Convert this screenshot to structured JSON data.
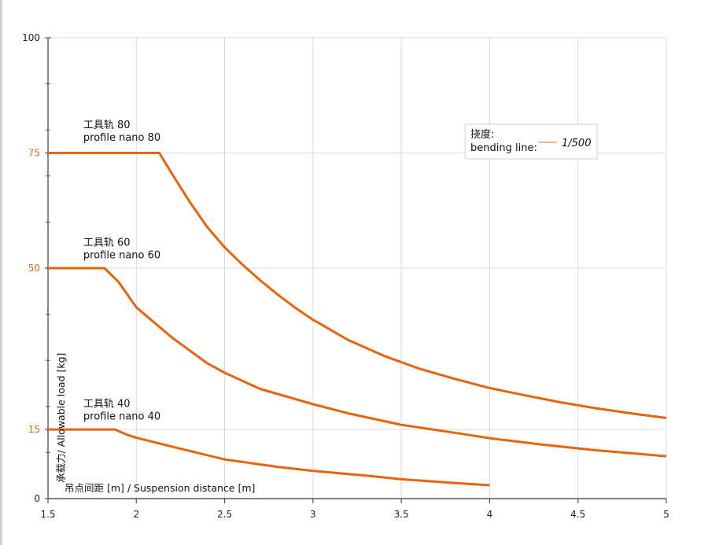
{
  "chart_data": {
    "type": "line",
    "xlabel": "吊点间距 [m] / Suspension distance [m]",
    "ylabel": "承载力/ Allowable load [kg]",
    "xlim": [
      1.5,
      5
    ],
    "ylim": [
      0,
      100
    ],
    "x_ticks": [
      "1.5",
      "2",
      "2.5",
      "3",
      "3.5",
      "4",
      "4.5",
      "5"
    ],
    "y_ticks": [
      {
        "value": 100,
        "label": "100",
        "highlight": false
      },
      {
        "value": 75,
        "label": "75",
        "highlight": true
      },
      {
        "value": 50,
        "label": "50",
        "highlight": true
      },
      {
        "value": 15,
        "label": "15",
        "highlight": true
      },
      {
        "value": 0,
        "label": "0",
        "highlight": false
      }
    ],
    "y_minor_ticks": [
      10,
      20,
      30,
      40,
      60,
      70,
      80,
      90
    ],
    "grid": true,
    "legend": {
      "position": "top-right",
      "title": "挠度:",
      "entry_label": "bending line:",
      "value": "1/500"
    },
    "colors": {
      "series": "#e8640c",
      "axis_highlight": "#e8640c",
      "grid": "#dcdcdc",
      "axis": "#555555"
    },
    "series": [
      {
        "name_cn": "工具轨 80",
        "name_en": "profile nano 80",
        "label_anchor": [
          1.7,
          78
        ],
        "points": [
          [
            1.5,
            75
          ],
          [
            2.13,
            75
          ],
          [
            2.2,
            70.6
          ],
          [
            2.3,
            64.5
          ],
          [
            2.4,
            59
          ],
          [
            2.5,
            54.5
          ],
          [
            2.6,
            50.8
          ],
          [
            2.7,
            47.4
          ],
          [
            2.8,
            44.3
          ],
          [
            2.9,
            41.4
          ],
          [
            3.0,
            38.8
          ],
          [
            3.2,
            34.4
          ],
          [
            3.4,
            31
          ],
          [
            3.5,
            29.6
          ],
          [
            3.6,
            28.2
          ],
          [
            3.8,
            26
          ],
          [
            4.0,
            24
          ],
          [
            4.2,
            22.4
          ],
          [
            4.4,
            20.9
          ],
          [
            4.6,
            19.6
          ],
          [
            4.8,
            18.5
          ],
          [
            5.0,
            17.5
          ]
        ]
      },
      {
        "name_cn": "工具轨 60",
        "name_en": "profile nano 60",
        "label_anchor": [
          1.7,
          52.5
        ],
        "points": [
          [
            1.5,
            50
          ],
          [
            1.82,
            50
          ],
          [
            1.9,
            47
          ],
          [
            2.0,
            41.5
          ],
          [
            2.2,
            35
          ],
          [
            2.4,
            29.4
          ],
          [
            2.5,
            27.3
          ],
          [
            2.7,
            23.8
          ],
          [
            3.0,
            20.5
          ],
          [
            3.2,
            18.5
          ],
          [
            3.5,
            16
          ],
          [
            3.8,
            14.3
          ],
          [
            4.0,
            13.1
          ],
          [
            4.3,
            11.7
          ],
          [
            4.6,
            10.5
          ],
          [
            5.0,
            9.2
          ]
        ]
      },
      {
        "name_cn": "工具轨 40",
        "name_en": "profile nano 40",
        "label_anchor": [
          1.7,
          17.5
        ],
        "points": [
          [
            1.5,
            15
          ],
          [
            1.88,
            15
          ],
          [
            1.95,
            13.8
          ],
          [
            2.0,
            13.2
          ],
          [
            2.2,
            11.3
          ],
          [
            2.5,
            8.5
          ],
          [
            2.8,
            6.9
          ],
          [
            3.0,
            6
          ],
          [
            3.3,
            5
          ],
          [
            3.5,
            4.2
          ],
          [
            3.8,
            3.4
          ],
          [
            4.0,
            2.9
          ]
        ]
      }
    ]
  }
}
